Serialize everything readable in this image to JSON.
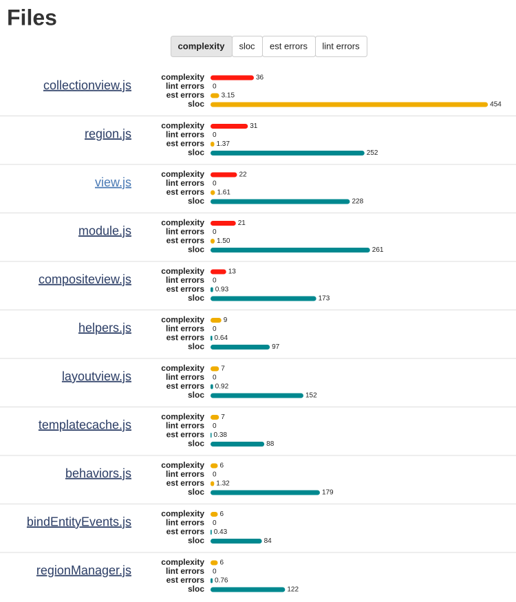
{
  "header": {
    "title": "Files"
  },
  "buttons": [
    "complexity",
    "sloc",
    "est errors",
    "lint errors"
  ],
  "files": [
    {
      "name": "collectionview.js",
      "metrics": [
        {
          "label": "complexity",
          "value": 36,
          "color": "#ff1a0f"
        },
        {
          "label": "lint errors",
          "value": 0,
          "color": "#f0ad00"
        },
        {
          "label": "est errors",
          "value": 3.15,
          "color": "#f0ad00"
        },
        {
          "label": "sloc",
          "value": 454,
          "color": "#f0ad00"
        }
      ]
    },
    {
      "name": "region.js",
      "metrics": [
        {
          "label": "complexity",
          "value": 31,
          "color": "#ff1a0f"
        },
        {
          "label": "lint errors",
          "value": 0,
          "color": "#f0ad00"
        },
        {
          "label": "est errors",
          "value": 1.37,
          "color": "#f0ad00"
        },
        {
          "label": "sloc",
          "value": 252,
          "color": "#00888f"
        }
      ]
    },
    {
      "name": "view.js",
      "metrics": [
        {
          "label": "complexity",
          "value": 22,
          "color": "#ff1a0f"
        },
        {
          "label": "lint errors",
          "value": 0,
          "color": "#f0ad00"
        },
        {
          "label": "est errors",
          "value": 1.61,
          "color": "#f0ad00"
        },
        {
          "label": "sloc",
          "value": 228,
          "color": "#00888f"
        }
      ]
    },
    {
      "name": "module.js",
      "metrics": [
        {
          "label": "complexity",
          "value": 21,
          "color": "#ff1a0f"
        },
        {
          "label": "lint errors",
          "value": 0,
          "color": "#f0ad00"
        },
        {
          "label": "est errors",
          "value": 1.5,
          "value_label": "1.50",
          "color": "#f0ad00"
        },
        {
          "label": "sloc",
          "value": 261,
          "color": "#00888f"
        }
      ]
    },
    {
      "name": "compositeview.js",
      "metrics": [
        {
          "label": "complexity",
          "value": 13,
          "color": "#ff1a0f"
        },
        {
          "label": "lint errors",
          "value": 0,
          "color": "#f0ad00"
        },
        {
          "label": "est errors",
          "value": 0.93,
          "color": "#00888f"
        },
        {
          "label": "sloc",
          "value": 173,
          "color": "#00888f"
        }
      ]
    },
    {
      "name": "helpers.js",
      "metrics": [
        {
          "label": "complexity",
          "value": 9,
          "color": "#f0ad00"
        },
        {
          "label": "lint errors",
          "value": 0,
          "color": "#f0ad00"
        },
        {
          "label": "est errors",
          "value": 0.64,
          "color": "#00888f"
        },
        {
          "label": "sloc",
          "value": 97,
          "color": "#00888f"
        }
      ]
    },
    {
      "name": "layoutview.js",
      "metrics": [
        {
          "label": "complexity",
          "value": 7,
          "color": "#f0ad00"
        },
        {
          "label": "lint errors",
          "value": 0,
          "color": "#f0ad00"
        },
        {
          "label": "est errors",
          "value": 0.92,
          "color": "#00888f"
        },
        {
          "label": "sloc",
          "value": 152,
          "color": "#00888f"
        }
      ]
    },
    {
      "name": "templatecache.js",
      "metrics": [
        {
          "label": "complexity",
          "value": 7,
          "color": "#f0ad00"
        },
        {
          "label": "lint errors",
          "value": 0,
          "color": "#f0ad00"
        },
        {
          "label": "est errors",
          "value": 0.38,
          "color": "#00888f"
        },
        {
          "label": "sloc",
          "value": 88,
          "color": "#00888f"
        }
      ]
    },
    {
      "name": "behaviors.js",
      "metrics": [
        {
          "label": "complexity",
          "value": 6,
          "color": "#f0ad00"
        },
        {
          "label": "lint errors",
          "value": 0,
          "color": "#f0ad00"
        },
        {
          "label": "est errors",
          "value": 1.32,
          "color": "#f0ad00"
        },
        {
          "label": "sloc",
          "value": 179,
          "color": "#00888f"
        }
      ]
    },
    {
      "name": "bindEntityEvents.js",
      "metrics": [
        {
          "label": "complexity",
          "value": 6,
          "color": "#f0ad00"
        },
        {
          "label": "lint errors",
          "value": 0,
          "color": "#f0ad00"
        },
        {
          "label": "est errors",
          "value": 0.43,
          "color": "#00888f"
        },
        {
          "label": "sloc",
          "value": 84,
          "color": "#00888f"
        }
      ]
    },
    {
      "name": "regionManager.js",
      "metrics": [
        {
          "label": "complexity",
          "value": 6,
          "color": "#f0ad00"
        },
        {
          "label": "lint errors",
          "value": 0,
          "color": "#f0ad00"
        },
        {
          "label": "est errors",
          "value": 0.76,
          "color": "#00888f"
        },
        {
          "label": "sloc",
          "value": 122,
          "color": "#00888f"
        }
      ]
    }
  ]
}
